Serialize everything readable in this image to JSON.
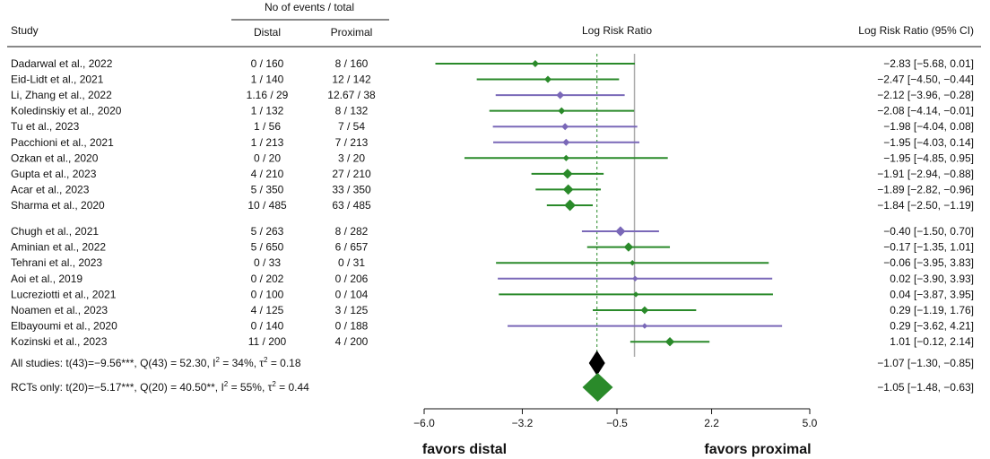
{
  "chart_data": {
    "type": "forest",
    "headers": {
      "group_header": "No of events / total",
      "study": "Study",
      "distal": "Distal",
      "proximal": "Proximal",
      "plot": "Log Risk Ratio",
      "ci": "Log Risk Ratio (95% CI)"
    },
    "colors": {
      "rct": "#2a8a2a",
      "observational": "#7a68b8",
      "overall": "#000000",
      "rct_summary": "#2a8a2a",
      "ref_line": "#aaaaaa"
    },
    "studies": [
      {
        "name": "Dadarwal et al., 2022",
        "distal": "0 / 160",
        "proximal": "8 / 160",
        "est": -2.83,
        "lo": -5.68,
        "hi": 0.01,
        "ci_text": "−2.83 [−5.68,  0.01]",
        "kind": "rct",
        "size": 1
      },
      {
        "name": "Eid-Lidt et al., 2021",
        "distal": "1 / 140",
        "proximal": "12 / 142",
        "est": -2.47,
        "lo": -4.5,
        "hi": -0.44,
        "ci_text": "−2.47 [−4.50, −0.44]",
        "kind": "rct",
        "size": 1
      },
      {
        "name": "Li, Zhang et al., 2022",
        "distal": "1.16 / 29",
        "proximal": "12.67 / 38",
        "est": -2.12,
        "lo": -3.96,
        "hi": -0.28,
        "ci_text": "−2.12 [−3.96, −0.28]",
        "kind": "observational",
        "size": 1.1
      },
      {
        "name": "Koledinskiy et al., 2020",
        "distal": "1 / 132",
        "proximal": "8 / 132",
        "est": -2.08,
        "lo": -4.14,
        "hi": -0.01,
        "ci_text": "−2.08 [−4.14, −0.01]",
        "kind": "rct",
        "size": 1
      },
      {
        "name": "Tu et al., 2023",
        "distal": "1 / 56",
        "proximal": "7 / 54",
        "est": -1.98,
        "lo": -4.04,
        "hi": 0.08,
        "ci_text": "−1.98 [−4.04,  0.08]",
        "kind": "observational",
        "size": 1
      },
      {
        "name": "Pacchioni et al., 2021",
        "distal": "1 / 213",
        "proximal": "7 / 213",
        "est": -1.95,
        "lo": -4.03,
        "hi": 0.14,
        "ci_text": "−1.95 [−4.03,  0.14]",
        "kind": "observational",
        "size": 1
      },
      {
        "name": "Ozkan et al., 2020",
        "distal": "0 / 20",
        "proximal": "3 / 20",
        "est": -1.95,
        "lo": -4.85,
        "hi": 0.95,
        "ci_text": "−1.95 [−4.85,  0.95]",
        "kind": "rct",
        "size": 0.9
      },
      {
        "name": "Gupta et al., 2023",
        "distal": "4 / 210",
        "proximal": "27 / 210",
        "est": -1.91,
        "lo": -2.94,
        "hi": -0.88,
        "ci_text": "−1.91 [−2.94, −0.88]",
        "kind": "rct",
        "size": 1.4
      },
      {
        "name": "Acar et al., 2023",
        "distal": "5 / 350",
        "proximal": "33 / 350",
        "est": -1.89,
        "lo": -2.82,
        "hi": -0.96,
        "ci_text": "−1.89 [−2.82, −0.96]",
        "kind": "rct",
        "size": 1.45
      },
      {
        "name": "Sharma et al., 2020",
        "distal": "10 / 485",
        "proximal": "63 / 485",
        "est": -1.84,
        "lo": -2.5,
        "hi": -1.19,
        "ci_text": "−1.84 [−2.50, −1.19]",
        "kind": "rct",
        "size": 1.6
      },
      {
        "name": "Chugh et al., 2021",
        "distal": "5 / 263",
        "proximal": "8 / 282",
        "est": -0.4,
        "lo": -1.5,
        "hi": 0.7,
        "ci_text": "−0.40 [−1.50,  0.70]",
        "kind": "observational",
        "size": 1.4
      },
      {
        "name": "Aminian et al., 2022",
        "distal": "5 / 650",
        "proximal": "6 / 657",
        "est": -0.17,
        "lo": -1.35,
        "hi": 1.01,
        "ci_text": "−0.17 [−1.35,  1.01]",
        "kind": "rct",
        "size": 1.3
      },
      {
        "name": "Tehrani et al., 2023",
        "distal": "0 / 33",
        "proximal": "0 / 31",
        "est": -0.06,
        "lo": -3.95,
        "hi": 3.83,
        "ci_text": "−0.06 [−3.95,  3.83]",
        "kind": "rct",
        "size": 0.8
      },
      {
        "name": "Aoi et al., 2019",
        "distal": "0 / 202",
        "proximal": "0 / 206",
        "est": 0.02,
        "lo": -3.9,
        "hi": 3.93,
        "ci_text": " 0.02 [−3.90,  3.93]",
        "kind": "observational",
        "size": 0.8
      },
      {
        "name": "Lucreziotti et al., 2021",
        "distal": "0 / 100",
        "proximal": "0 / 104",
        "est": 0.04,
        "lo": -3.87,
        "hi": 3.95,
        "ci_text": " 0.04 [−3.87,  3.95]",
        "kind": "rct",
        "size": 0.8
      },
      {
        "name": "Noamen et al., 2023",
        "distal": "4 / 125",
        "proximal": "3 / 125",
        "est": 0.29,
        "lo": -1.19,
        "hi": 1.76,
        "ci_text": " 0.29 [−1.19,  1.76]",
        "kind": "rct",
        "size": 1.1
      },
      {
        "name": "Elbayoumi et al., 2020",
        "distal": "0 / 140",
        "proximal": "0 / 188",
        "est": 0.29,
        "lo": -3.62,
        "hi": 4.21,
        "ci_text": " 0.29 [−3.62,  4.21]",
        "kind": "observational",
        "size": 0.8
      },
      {
        "name": "Kozinski et al., 2023",
        "distal": "11 / 200",
        "proximal": "4 / 200",
        "est": 1.01,
        "lo": -0.12,
        "hi": 2.14,
        "ci_text": " 1.01 [−0.12,  2.14]",
        "kind": "rct",
        "size": 1.3
      }
    ],
    "summaries": [
      {
        "label_main": "All studies: t(43)=−9.56***, Q(43) = 52.30, I",
        "label_sup": "2",
        "label_mid": " = 34%, τ",
        "label_sup2": "2",
        "label_end": " = 0.18",
        "est": -1.07,
        "lo": -1.3,
        "hi": -0.85,
        "ci_text": "−1.07 [−1.30, −0.85]",
        "kind": "overall"
      },
      {
        "label_main": "RCTs only: t(20)=−5.17***, Q(20) = 40.50**, I",
        "label_sup": "2",
        "label_mid": " = 55%, τ",
        "label_sup2": "2",
        "label_end": " = 0.44",
        "est": -1.05,
        "lo": -1.48,
        "hi": -0.63,
        "ci_text": "−1.05 [−1.48, −0.63]",
        "kind": "rct_summary"
      }
    ],
    "reference_line": 0,
    "summary_line": -1.07,
    "x_axis": {
      "ticks": [
        -6.0,
        -3.2,
        -0.5,
        2.2,
        5.0
      ],
      "tick_labels": [
        "−6.0",
        "−3.2",
        "−0.5",
        "2.2",
        "5.0"
      ],
      "range": [
        -6.0,
        5.0
      ]
    },
    "favors": {
      "left": "favors distal",
      "right": "favors proximal"
    }
  }
}
